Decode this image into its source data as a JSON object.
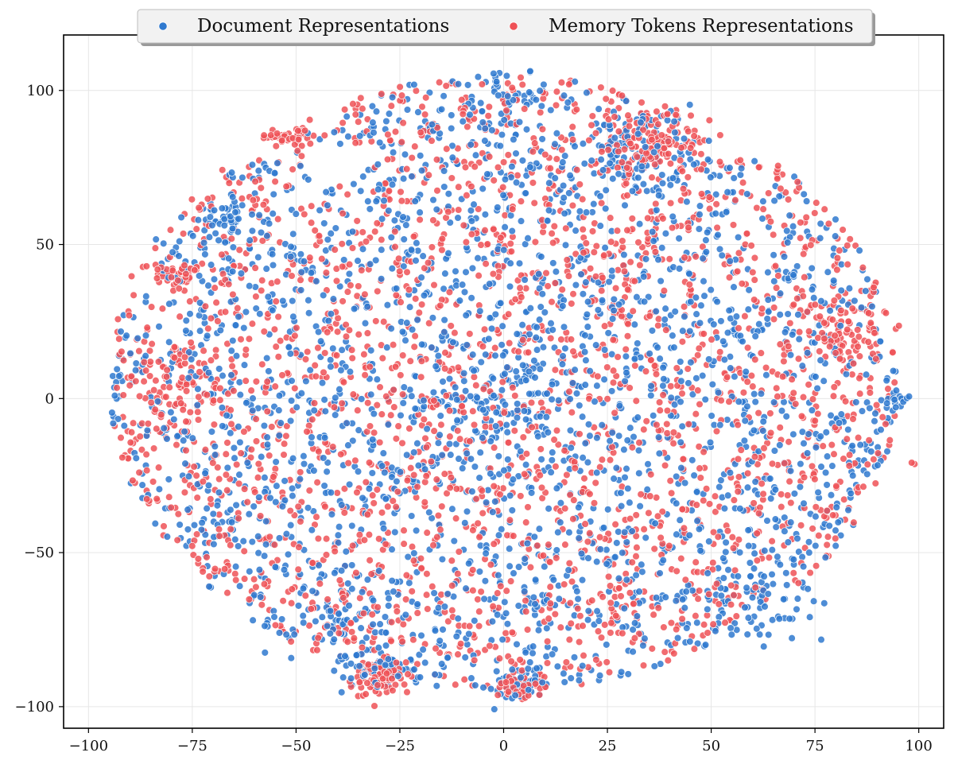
{
  "chart_data": {
    "type": "scatter",
    "title": "",
    "xlabel": "",
    "ylabel": "",
    "xlim": [
      -106,
      106
    ],
    "ylim": [
      -107,
      118
    ],
    "xticks": [
      -100,
      -75,
      -50,
      -25,
      0,
      25,
      50,
      75,
      100
    ],
    "yticks": [
      -100,
      -50,
      0,
      50,
      100
    ],
    "xtick_labels": [
      "−100",
      "−75",
      "−50",
      "−25",
      "0",
      "25",
      "50",
      "75",
      "100"
    ],
    "ytick_labels": [
      "−100",
      "−50",
      "0",
      "50",
      "100"
    ],
    "grid": true,
    "legend_position": "top-center",
    "point_count_per_series": 2800,
    "series": [
      {
        "name": "Document Representations",
        "color": "#2f79cf",
        "seed": 7,
        "clusters": [
          {
            "cx": -30,
            "cy": -88,
            "sx": 4,
            "sy": 3,
            "w": 1
          },
          {
            "cx": 3,
            "cy": -92,
            "sx": 3,
            "sy": 3,
            "w": 1
          },
          {
            "cx": -67,
            "cy": 58,
            "sx": 3,
            "sy": 3,
            "w": 1
          },
          {
            "cx": 33,
            "cy": 80,
            "sx": 7,
            "sy": 6,
            "w": 2
          },
          {
            "cx": -3,
            "cy": 97,
            "sx": 5,
            "sy": 5,
            "w": 1
          },
          {
            "cx": 95,
            "cy": 0,
            "sx": 2,
            "sy": 2,
            "w": 0.3
          },
          {
            "cx": 0,
            "cy": 0,
            "sx": 10,
            "sy": 10,
            "w": 2
          },
          {
            "cx": 60,
            "cy": -65,
            "sx": 10,
            "sy": 8,
            "w": 1.5
          },
          {
            "cx": -40,
            "cy": -70,
            "sx": 10,
            "sy": 8,
            "w": 1.5
          }
        ]
      },
      {
        "name": "Memory Tokens Representations",
        "color": "#ef5257",
        "seed": 23,
        "clusters": [
          {
            "cx": -30,
            "cy": -90,
            "sx": 3,
            "sy": 3,
            "w": 1.5
          },
          {
            "cx": 4,
            "cy": -94,
            "sx": 2,
            "sy": 2,
            "w": 0.8
          },
          {
            "cx": -78,
            "cy": 5,
            "sx": 6,
            "sy": 8,
            "w": 1.5
          },
          {
            "cx": 35,
            "cy": 82,
            "sx": 6,
            "sy": 5,
            "w": 2
          },
          {
            "cx": 80,
            "cy": 22,
            "sx": 6,
            "sy": 6,
            "w": 1.5
          },
          {
            "cx": -52,
            "cy": 85,
            "sx": 3,
            "sy": 2,
            "w": 0.6
          },
          {
            "cx": 99,
            "cy": -21,
            "sx": 0.5,
            "sy": 0.5,
            "w": 0.05
          },
          {
            "cx": -78,
            "cy": 40,
            "sx": 4,
            "sy": 3,
            "w": 0.8
          }
        ]
      }
    ]
  }
}
